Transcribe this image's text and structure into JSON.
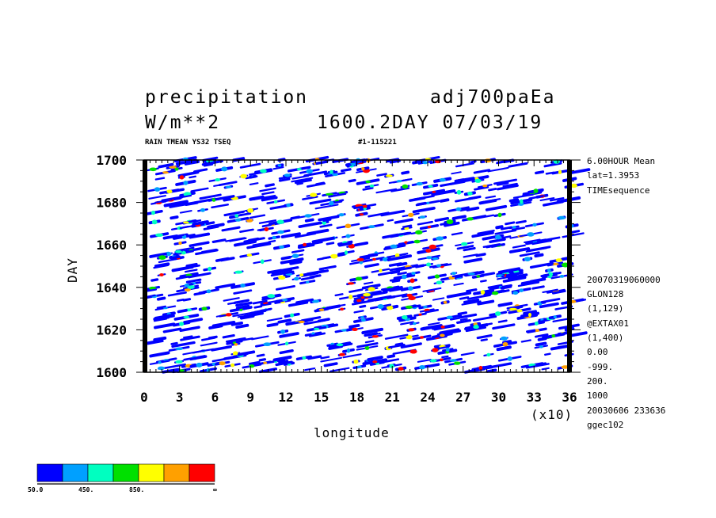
{
  "header": {
    "var_name": "precipitation",
    "run_name": "adj700paEa",
    "units": "W/m**2",
    "time_info": "1600.2DAY 07/03/19",
    "sub_left": "RAIN TMEAN YS32 TSEQ",
    "sub_right": "#1-115221"
  },
  "side_info": {
    "top": [
      "6.00HOUR Mean",
      "lat=1.3953",
      "TIMEsequence"
    ],
    "bottom": [
      "20070319060000",
      "GLON128",
      "(1,129)",
      "@EXTAX01",
      "(1,400)",
      "0.00",
      "-999.",
      "200.",
      "1000",
      "20030606 233636",
      "ggec102"
    ]
  },
  "chart_data": {
    "type": "heatmap",
    "title": "precipitation",
    "xlabel": "longitude",
    "ylabel": "DAY",
    "x_multiplier": "(x10)",
    "xlim": [
      0,
      36
    ],
    "ylim": [
      1600,
      1700
    ],
    "x_ticks": [
      "0",
      "3",
      "6",
      "9",
      "12",
      "15",
      "18",
      "21",
      "24",
      "27",
      "30",
      "33",
      "36"
    ],
    "y_ticks": [
      "1600",
      "1620",
      "1640",
      "1660",
      "1680",
      "1700"
    ],
    "contour_levels": [
      50,
      250,
      450,
      650,
      850,
      1050,
      1250
    ],
    "colorbar": {
      "colors": [
        "#0000ff",
        "#00a0ff",
        "#00ffc0",
        "#00e000",
        "#ffff00",
        "#ffa000",
        "#ff0000"
      ],
      "labels": [
        "50.0",
        "450.",
        "850.",
        "∞"
      ]
    },
    "note": "Eastward-propagating rainfall streaks; highest values concentrated near longitude 170-250"
  }
}
